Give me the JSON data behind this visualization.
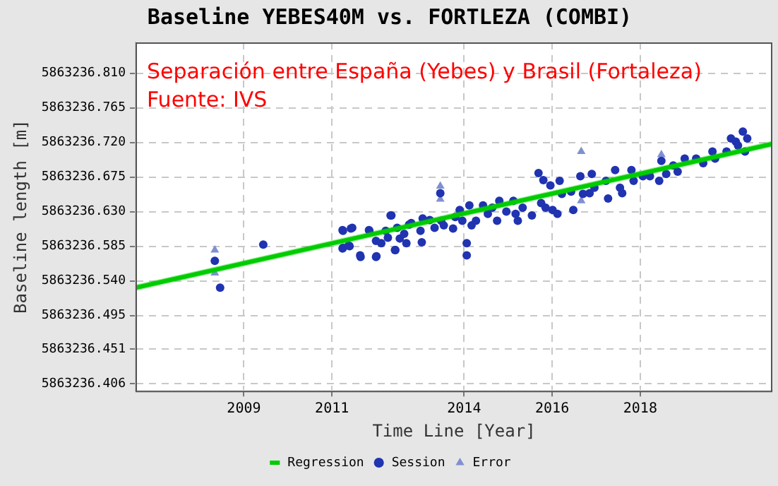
{
  "chart_data": {
    "type": "scatter",
    "title": "Baseline YEBES40M vs. FORTLEZA (COMBI)",
    "xlabel": "Time Line [Year]",
    "ylabel": "Baseline length [m]",
    "annotations": [
      "Separación entre España (Yebes) y Brasil (Fortaleza)",
      "Fuente: IVS"
    ],
    "xlim": [
      2006.54,
      2021.0
    ],
    "xticks": [
      {
        "value": 2009,
        "label": "2009"
      },
      {
        "value": 2011,
        "label": "2011"
      },
      {
        "value": 2014,
        "label": "2014"
      },
      {
        "value": 2016,
        "label": "2016"
      },
      {
        "value": 2018,
        "label": "2018"
      }
    ],
    "ylim": [
      5863236.397,
      5863236.85
    ],
    "yticks": [
      {
        "value": 5863236.406,
        "label": "5863236.406"
      },
      {
        "value": 5863236.451,
        "label": "5863236.451"
      },
      {
        "value": 5863236.495,
        "label": "5863236.495"
      },
      {
        "value": 5863236.54,
        "label": "5863236.540"
      },
      {
        "value": 5863236.585,
        "label": "5863236.585"
      },
      {
        "value": 5863236.63,
        "label": "5863236.630"
      },
      {
        "value": 5863236.675,
        "label": "5863236.675"
      },
      {
        "value": 5863236.72,
        "label": "5863236.720"
      },
      {
        "value": 5863236.765,
        "label": "5863236.765"
      },
      {
        "value": 5863236.81,
        "label": "5863236.810"
      }
    ],
    "grid": true,
    "legend": "bottom",
    "series": [
      {
        "name": "Regression",
        "type": "line",
        "color": "#00cc00",
        "marker": "none",
        "x": [
          2006.54,
          2021.0
        ],
        "values": [
          5863236.531,
          5863236.718
        ],
        "lower": [
          5863236.527,
          5863236.714
        ],
        "upper": [
          5863236.535,
          5863236.722
        ]
      },
      {
        "name": "Session",
        "color": "#2033b0",
        "marker": "circle",
        "x": [
          2008.34,
          2008.46,
          2009.44,
          2011.24,
          2011.24,
          2011.4,
          2011.46,
          2011.65,
          2011.84,
          2012.0,
          2012.0,
          2012.35,
          2012.44,
          2011.25,
          2011.43,
          2011.25,
          2011.38,
          2011.64,
          2011.85,
          2012.01,
          2012.12,
          2012.22,
          2012.27,
          2012.33,
          2012.43,
          2012.48,
          2012.54,
          2012.64,
          2012.69,
          2012.75,
          2012.8,
          2013.01,
          2013.04,
          2013.06,
          2013.22,
          2013.33,
          2013.46,
          2013.48,
          2013.54,
          2013.75,
          2013.8,
          2013.9,
          2013.96,
          2014.06,
          2014.06,
          2014.12,
          2014.17,
          2014.27,
          2014.43,
          2014.54,
          2014.64,
          2014.75,
          2014.8,
          2014.96,
          2015.12,
          2015.17,
          2015.22,
          2015.33,
          2015.54,
          2015.69,
          2015.8,
          2015.75,
          2015.85,
          2015.96,
          2016.01,
          2016.12,
          2016.17,
          2016.22,
          2016.43,
          2016.48,
          2016.64,
          2016.7,
          2016.85,
          2016.9,
          2016.96,
          2017.22,
          2017.27,
          2017.43,
          2017.54,
          2017.59,
          2017.8,
          2017.85,
          2018.06,
          2018.22,
          2018.43,
          2018.48,
          2018.59,
          2018.75,
          2018.85,
          2019.01,
          2019.27,
          2019.43,
          2019.64,
          2019.7,
          2019.96,
          2020.06,
          2020.17,
          2020.22,
          2020.33,
          2020.38,
          2020.43
        ],
        "values": [
          5863236.566,
          5863236.531,
          5863236.587,
          5863236.606,
          5863236.582,
          5863236.585,
          5863236.609,
          5863236.571,
          5863236.606,
          5863236.571,
          5863236.592,
          5863236.625,
          5863236.58,
          5863236.605,
          5863236.608,
          5863236.583,
          5863236.586,
          5863236.573,
          5863236.605,
          5863236.572,
          5863236.589,
          5863236.605,
          5863236.596,
          5863236.625,
          5863236.58,
          5863236.609,
          5863236.595,
          5863236.601,
          5863236.589,
          5863236.613,
          5863236.615,
          5863236.605,
          5863236.59,
          5863236.621,
          5863236.619,
          5863236.609,
          5863236.654,
          5863236.618,
          5863236.612,
          5863236.608,
          5863236.623,
          5863236.632,
          5863236.618,
          5863236.589,
          5863236.573,
          5863236.638,
          5863236.612,
          5863236.618,
          5863236.638,
          5863236.627,
          5863236.635,
          5863236.618,
          5863236.644,
          5863236.63,
          5863236.644,
          5863236.627,
          5863236.618,
          5863236.635,
          5863236.625,
          5863236.68,
          5863236.671,
          5863236.641,
          5863236.635,
          5863236.664,
          5863236.632,
          5863236.627,
          5863236.67,
          5863236.653,
          5863236.656,
          5863236.632,
          5863236.676,
          5863236.653,
          5863236.654,
          5863236.679,
          5863236.661,
          5863236.67,
          5863236.647,
          5863236.684,
          5863236.661,
          5863236.654,
          5863236.684,
          5863236.67,
          5863236.676,
          5863236.676,
          5863236.67,
          5863236.696,
          5863236.679,
          5863236.69,
          5863236.682,
          5863236.699,
          5863236.699,
          5863236.693,
          5863236.708,
          5863236.699,
          5863236.708,
          5863236.725,
          5863236.721,
          5863236.716,
          5863236.734,
          5863236.708,
          5863236.725
        ]
      },
      {
        "name": "Error",
        "color": "#8090d0",
        "marker": "triangle",
        "x": [
          2008.34,
          2008.34,
          2013.46,
          2013.46,
          2016.66,
          2016.66,
          2018.48
        ],
        "values": [
          5863236.58,
          5863236.55,
          5863236.663,
          5863236.646,
          5863236.708,
          5863236.644,
          5863236.704
        ]
      }
    ]
  }
}
